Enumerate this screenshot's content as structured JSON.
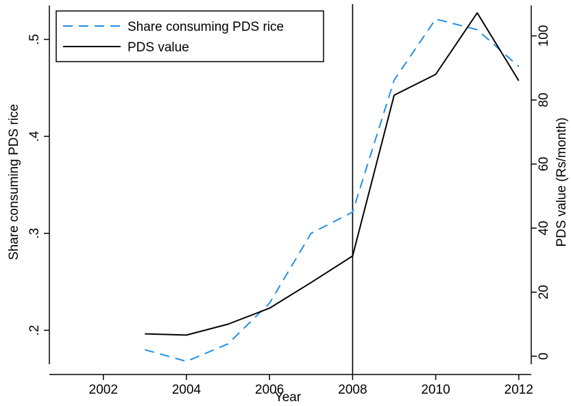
{
  "chart_data": {
    "type": "line",
    "xlabel": "Year",
    "ylabel_left": "Share consuming PDS rice",
    "ylabel_right": "PDS value (Rs/month)",
    "x_ticks": [
      2002,
      2004,
      2006,
      2008,
      2010,
      2012
    ],
    "x_tick_labels": [
      "2002",
      "2004",
      "2006",
      "2008",
      "2010",
      "2012"
    ],
    "xlim": [
      2000.7,
      2012.3
    ],
    "y_left_ticks": [
      0.2,
      0.3,
      0.4,
      0.5
    ],
    "y_left_tick_labels": [
      ".2",
      ".3",
      ".4",
      ".5"
    ],
    "y_left_lim": [
      0.165,
      0.535
    ],
    "y_right_ticks": [
      0,
      20,
      40,
      60,
      80,
      100
    ],
    "y_right_tick_labels": [
      "0",
      "20",
      "40",
      "60",
      "80",
      "100"
    ],
    "y_right_lim": [
      -2.5,
      109.5
    ],
    "vertical_line_x": 2008,
    "legend_position": "top-left",
    "series": [
      {
        "name": "Share consuming PDS rice",
        "axis": "left",
        "style": "dashed",
        "color": "#1f8fe8",
        "x": [
          2003,
          2004,
          2005,
          2006,
          2007,
          2008,
          2009,
          2010,
          2011,
          2012
        ],
        "y": [
          0.18,
          0.168,
          0.186,
          0.228,
          0.3,
          0.322,
          0.458,
          0.521,
          0.51,
          0.472
        ]
      },
      {
        "name": "PDS value",
        "axis": "right",
        "style": "solid",
        "color": "#000000",
        "x": [
          2003,
          2004,
          2005,
          2006,
          2007,
          2008,
          2009,
          2010,
          2011,
          2012
        ],
        "y": [
          7,
          6.6,
          10,
          15,
          23,
          31.3,
          81.5,
          88,
          107.2,
          86
        ]
      }
    ]
  }
}
